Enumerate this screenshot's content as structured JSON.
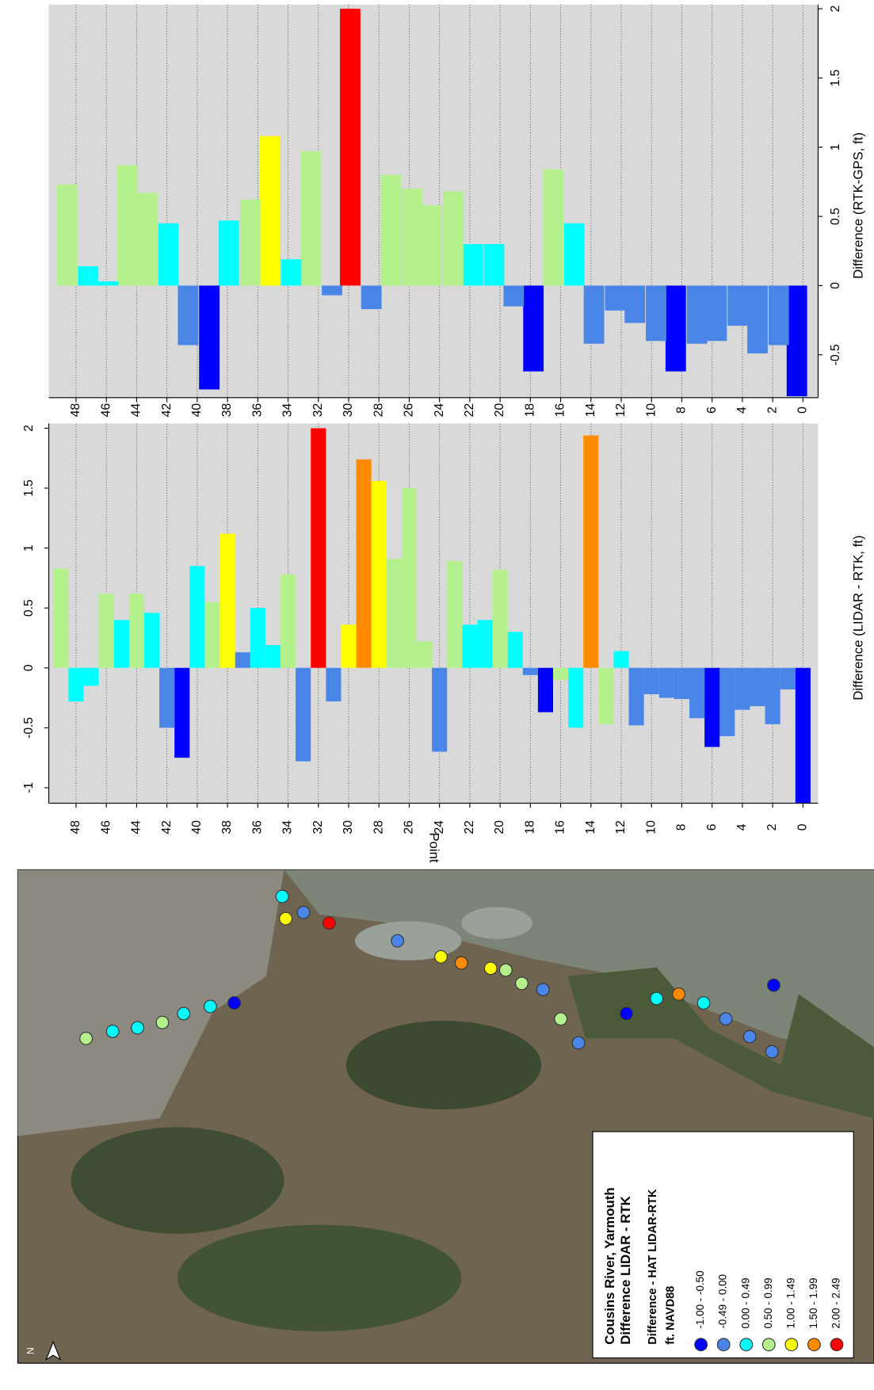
{
  "chart_data": [
    {
      "type": "bar",
      "x_label": "Point",
      "y_label": "Difference (LIDAR - RTK, ft)",
      "x": [
        0,
        1,
        2,
        3,
        4,
        5,
        6,
        7,
        8,
        9,
        10,
        11,
        12,
        13,
        14,
        15,
        16,
        17,
        18,
        19,
        20,
        21,
        22,
        23,
        24,
        25,
        26,
        27,
        28,
        29,
        30,
        31,
        32,
        33,
        34,
        35,
        36,
        37,
        38,
        39,
        40,
        41,
        42,
        43,
        44,
        45,
        46,
        47,
        48,
        49
      ],
      "values": [
        -1.13,
        -0.18,
        -0.47,
        -0.32,
        -0.35,
        -0.57,
        -0.66,
        -0.42,
        -0.26,
        -0.25,
        -0.22,
        -0.48,
        0.14,
        -0.47,
        1.94,
        -0.5,
        -0.1,
        -0.37,
        -0.06,
        0.3,
        0.82,
        0.4,
        0.36,
        0.89,
        -0.7,
        0.22,
        1.5,
        0.91,
        1.56,
        1.74,
        0.36,
        -0.28,
        2.0,
        -0.78,
        0.78,
        0.19,
        0.5,
        0.13,
        1.12,
        0.55,
        0.85,
        -0.75,
        -0.5,
        0.46,
        0.62,
        0.4,
        0.62,
        -0.15,
        -0.28,
        0.83
      ],
      "colors": [
        "#0000ff",
        "#4a86e8",
        "#4a86e8",
        "#4a86e8",
        "#4a86e8",
        "#4a86e8",
        "#0000ff",
        "#4a86e8",
        "#4a86e8",
        "#4a86e8",
        "#4a86e8",
        "#4a86e8",
        "#00ffff",
        "#b4f08c",
        "#ff8c00",
        "#00ffff",
        "#b4f08c",
        "#0000ff",
        "#4a86e8",
        "#00ffff",
        "#b4f08c",
        "#00ffff",
        "#00ffff",
        "#b4f08c",
        "#4a86e8",
        "#b4f08c",
        "#b4f08c",
        "#b4f08c",
        "#ffff00",
        "#ff8c00",
        "#ffff00",
        "#4a86e8",
        "#ff0000",
        "#4a86e8",
        "#b4f08c",
        "#00ffff",
        "#00ffff",
        "#4a86e8",
        "#ffff00",
        "#b4f08c",
        "#00ffff",
        "#0000ff",
        "#4a86e8",
        "#00ffff",
        "#b4f08c",
        "#00ffff",
        "#b4f08c",
        "#00ffff",
        "#00ffff",
        "#b4f08c"
      ],
      "xlim": [
        -1,
        49.8
      ],
      "x_inverted": true,
      "xticks": [
        0,
        2,
        4,
        6,
        8,
        10,
        12,
        14,
        16,
        18,
        20,
        22,
        24,
        26,
        28,
        30,
        32,
        34,
        36,
        38,
        40,
        42,
        44,
        46,
        48
      ],
      "ylim": [
        -1.13,
        2.04
      ],
      "yticks": [
        -1,
        -0.5,
        0,
        0.5,
        1,
        1.5,
        2
      ],
      "y_axis_side": "left",
      "grid": true
    },
    {
      "type": "bar",
      "y_label": "Difference (RTK-GPS, ft)",
      "x": [
        0.4,
        1.6,
        3.0,
        4.3,
        5.7,
        7.0,
        8.4,
        9.7,
        11.1,
        12.4,
        13.8,
        15.1,
        16.5,
        17.8,
        19.1,
        20.4,
        21.8,
        23.1,
        24.5,
        25.8,
        27.2,
        28.5,
        29.9,
        31.1,
        32.5,
        33.8,
        35.2,
        36.5,
        37.9,
        39.2,
        40.6,
        41.9,
        43.3,
        44.6,
        45.9,
        47.2,
        48.6
      ],
      "values": [
        -0.8,
        -0.43,
        -0.49,
        -0.29,
        -0.4,
        -0.42,
        -0.62,
        -0.4,
        -0.27,
        -0.18,
        -0.42,
        0.45,
        0.84,
        -0.62,
        -0.15,
        0.3,
        0.3,
        0.68,
        0.58,
        0.7,
        0.8,
        -0.17,
        2.0,
        -0.07,
        0.97,
        0.19,
        1.08,
        0.62,
        0.47,
        -0.75,
        -0.43,
        0.45,
        0.67,
        0.87,
        0.03,
        0.14,
        0.73
      ],
      "colors": [
        "#0000ff",
        "#4a86e8",
        "#4a86e8",
        "#4a86e8",
        "#4a86e8",
        "#4a86e8",
        "#0000ff",
        "#4a86e8",
        "#4a86e8",
        "#4a86e8",
        "#4a86e8",
        "#00ffff",
        "#b4f08c",
        "#0000ff",
        "#4a86e8",
        "#00ffff",
        "#00ffff",
        "#b4f08c",
        "#b4f08c",
        "#b4f08c",
        "#b4f08c",
        "#4a86e8",
        "#ff0000",
        "#4a86e8",
        "#b4f08c",
        "#00ffff",
        "#ffff00",
        "#b4f08c",
        "#00ffff",
        "#0000ff",
        "#4a86e8",
        "#00ffff",
        "#b4f08c",
        "#b4f08c",
        "#00ffff",
        "#00ffff",
        "#b4f08c"
      ],
      "xlim": [
        -1,
        49.8
      ],
      "x_inverted": true,
      "xticks": [
        0,
        2,
        4,
        6,
        8,
        10,
        12,
        14,
        16,
        18,
        20,
        22,
        24,
        26,
        28,
        30,
        32,
        34,
        36,
        38,
        40,
        42,
        44,
        46,
        48
      ],
      "ylim": [
        -0.81,
        2.03
      ],
      "yticks": [
        -0.5,
        0,
        0.5,
        1,
        1.5,
        2
      ],
      "y_axis_side": "right",
      "grid": true
    }
  ],
  "map_legend": {
    "title": "Cousins River, Yarmouth",
    "subtitle": "Difference LIDAR - RTK",
    "heading": "Difference - HAT LIDAR-RTK",
    "units": "ft. NAVD88",
    "entries": [
      {
        "label": "-1.00 - -0.50",
        "color": "#0000ff"
      },
      {
        "label": "-0.49 - 0.00",
        "color": "#4a86e8"
      },
      {
        "label": "0.00 - 0.49",
        "color": "#00ffff"
      },
      {
        "label": "0.50 - 0.99",
        "color": "#b4f08c"
      },
      {
        "label": "1.00 - 1.49",
        "color": "#ffff00"
      },
      {
        "label": "1.50 - 1.99",
        "color": "#ff8c00"
      },
      {
        "label": "2.00 - 2.49",
        "color": "#ff0000"
      }
    ]
  },
  "north_label": "N"
}
